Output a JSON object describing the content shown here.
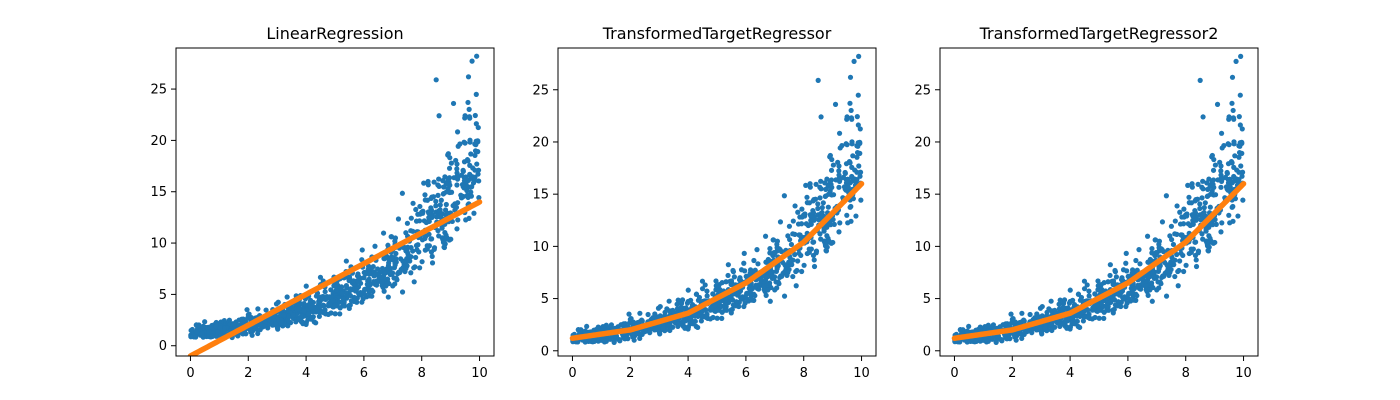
{
  "figure": {
    "background": "#ffffff"
  },
  "chart_data": [
    {
      "type": "scatter",
      "title": "LinearRegression",
      "xlabel": "",
      "ylabel": "",
      "xlim": [
        -0.5,
        10.5
      ],
      "ylim": [
        -1.0,
        29.0
      ],
      "x_ticks": [
        0,
        2,
        4,
        6,
        8,
        10
      ],
      "y_ticks": [
        0,
        5,
        10,
        15,
        20,
        25
      ],
      "grid": false,
      "scatter_color": "#1f77b4",
      "fit_color": "#ff7f0e",
      "scatter_note": "noisy data, roughly exp(x/4) with multiplicative noise; 1000 points x uniform 0-10",
      "max_point": {
        "x": 9.9,
        "y": 28.2
      },
      "fit": {
        "model": "linear",
        "x": [
          0,
          2,
          4,
          6,
          8,
          10
        ],
        "y": [
          -1.0,
          2.0,
          5.0,
          8.0,
          11.0,
          14.0
        ]
      }
    },
    {
      "type": "scatter",
      "title": "TransformedTargetRegressor",
      "xlabel": "",
      "ylabel": "",
      "xlim": [
        -0.5,
        10.5
      ],
      "ylim": [
        -0.5,
        29.0
      ],
      "x_ticks": [
        0,
        2,
        4,
        6,
        8,
        10
      ],
      "y_ticks": [
        0,
        5,
        10,
        15,
        20,
        25
      ],
      "grid": false,
      "scatter_color": "#1f77b4",
      "fit_color": "#ff7f0e",
      "max_point": {
        "x": 9.9,
        "y": 28.2
      },
      "fit": {
        "model": "exponential",
        "x": [
          0,
          2,
          4,
          6,
          8,
          10
        ],
        "y": [
          1.2,
          2.0,
          3.6,
          6.5,
          10.4,
          16.0
        ]
      }
    },
    {
      "type": "scatter",
      "title": "TransformedTargetRegressor2",
      "xlabel": "",
      "ylabel": "",
      "xlim": [
        -0.5,
        10.5
      ],
      "ylim": [
        -0.5,
        29.0
      ],
      "x_ticks": [
        0,
        2,
        4,
        6,
        8,
        10
      ],
      "y_ticks": [
        0,
        5,
        10,
        15,
        20,
        25
      ],
      "grid": false,
      "scatter_color": "#1f77b4",
      "fit_color": "#ff7f0e",
      "max_point": {
        "x": 9.9,
        "y": 28.2
      },
      "fit": {
        "model": "exponential",
        "x": [
          0,
          2,
          4,
          6,
          8,
          10
        ],
        "y": [
          1.2,
          2.0,
          3.6,
          6.5,
          10.4,
          16.0
        ]
      }
    }
  ]
}
